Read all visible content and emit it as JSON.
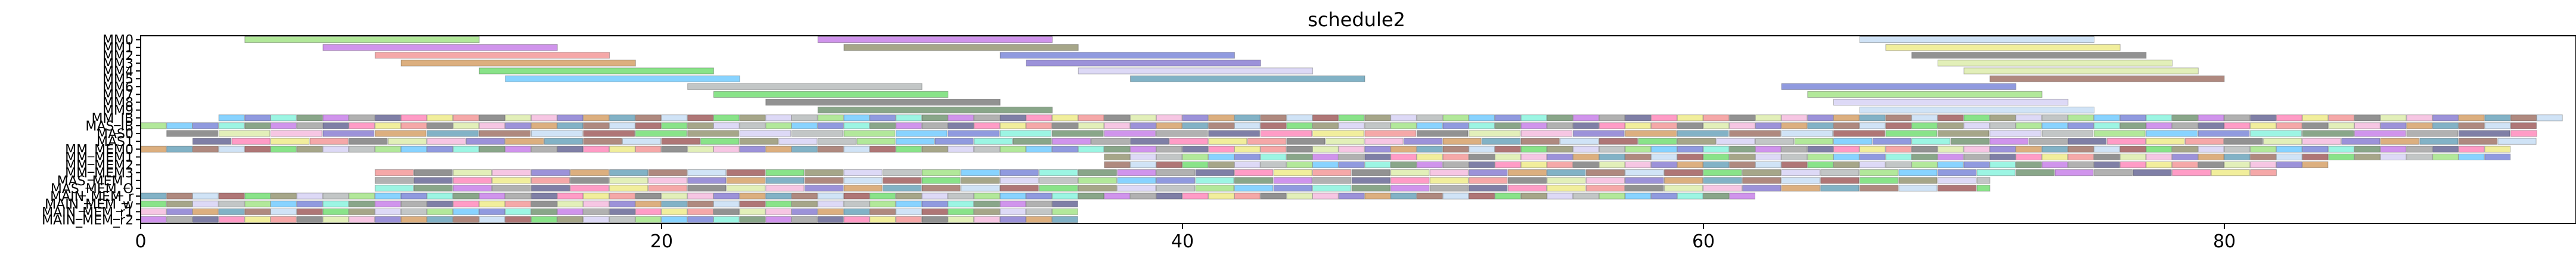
{
  "chart_data": {
    "type": "bar",
    "orientation": "horizontal",
    "title": "schedule2",
    "xlabel": "",
    "ylabel": "",
    "xlim": [
      0,
      93.5
    ],
    "xticks": [
      0,
      20,
      40,
      60,
      80
    ],
    "grid": false,
    "legend": "none",
    "categories": [
      "MM0",
      "MM1",
      "MM2",
      "MM3",
      "MM4",
      "MM5",
      "MM6",
      "MM7",
      "MM8",
      "MM9",
      "MM_IB",
      "MAS_IB",
      "MAS0",
      "MAS1",
      "MM_MEM0",
      "MM_MEM1",
      "MM_MEM2",
      "MM_MEM3",
      "MAS_MEM_I",
      "MAS_MEM_O",
      "MAIN_MEM_r",
      "MAIN_MEM_w",
      "MAIN_MEM_r1",
      "MAIN_MEM_r2"
    ],
    "palette": [
      "#7ed957",
      "#b04de0",
      "#ee6e6e",
      "#c57a2a",
      "#3ad13a",
      "#38b6ff",
      "#7d7d7d",
      "#4a4a4a",
      "#2f7fa0",
      "#6b6b3a",
      "#4657c9",
      "#2a2a6a",
      "#cfe58a",
      "#7a3a2a",
      "#c6c0f0",
      "#5aeed0",
      "#ff5aa0",
      "#f0a0d0",
      "#b0d0f0",
      "#9aa0a0",
      "#3a6a3a",
      "#e8e25a",
      "#5a4ac0",
      "#7a1a1a"
    ],
    "rows": [
      {
        "label": "MM0",
        "segments": [
          [
            4,
            13,
            0
          ],
          [
            26,
            35,
            1
          ],
          [
            66,
            75,
            18
          ]
        ]
      },
      {
        "label": "MM1",
        "segments": [
          [
            7,
            16,
            1
          ],
          [
            27,
            36,
            9
          ],
          [
            67,
            76,
            21
          ]
        ]
      },
      {
        "label": "MM2",
        "segments": [
          [
            9,
            18,
            2
          ],
          [
            33,
            42,
            10
          ],
          [
            68,
            77,
            7
          ]
        ]
      },
      {
        "label": "MM3",
        "segments": [
          [
            10,
            19,
            3
          ],
          [
            34,
            43,
            22
          ],
          [
            69,
            78,
            12
          ]
        ]
      },
      {
        "label": "MM4",
        "segments": [
          [
            13,
            22,
            4
          ],
          [
            36,
            45,
            14
          ],
          [
            70,
            79,
            12
          ]
        ]
      },
      {
        "label": "MM5",
        "segments": [
          [
            14,
            23,
            5
          ],
          [
            38,
            47,
            8
          ],
          [
            71,
            80,
            13
          ]
        ]
      },
      {
        "label": "MM6",
        "segments": [
          [
            21,
            30,
            19
          ],
          [
            63,
            72,
            10
          ]
        ]
      },
      {
        "label": "MM7",
        "segments": [
          [
            22,
            31,
            4
          ],
          [
            64,
            73,
            0
          ]
        ]
      },
      {
        "label": "MM8",
        "segments": [
          [
            24,
            33,
            7
          ],
          [
            65,
            74,
            14
          ]
        ]
      },
      {
        "label": "MM9",
        "segments": [
          [
            26,
            35,
            20
          ],
          [
            66,
            75,
            18
          ]
        ]
      },
      {
        "label": "MM_IB",
        "pattern": {
          "start": 3,
          "step": 1,
          "end": 93,
          "pcount": 5
        }
      },
      {
        "label": "MAS_IB",
        "pattern": {
          "start": 0,
          "step": 1,
          "end": 92,
          "pcount": 0
        }
      },
      {
        "label": "MAS0",
        "pattern": {
          "start": 1,
          "step": 2,
          "end": 92,
          "pcount": 7
        }
      },
      {
        "label": "MAS1",
        "pattern": {
          "start": 2,
          "step": 1.5,
          "end": 92,
          "pcount": 11
        }
      },
      {
        "label": "MM_MEM0",
        "pattern": {
          "start": 0,
          "step": 1,
          "end": 91,
          "pcount": 3
        }
      },
      {
        "label": "MM_MEM1",
        "pattern": {
          "start": 37,
          "step": 1,
          "end": 91,
          "pcount": 9
        }
      },
      {
        "label": "MM_MEM2",
        "pattern": {
          "start": 37,
          "step": 1,
          "end": 84,
          "pcount": 13
        }
      },
      {
        "label": "MM_MEM3",
        "pattern": {
          "start": 9,
          "step": 1.5,
          "end": 82,
          "pcount": 2
        }
      },
      {
        "label": "MAS_MEM_I",
        "pattern": {
          "start": 9,
          "step": 1.5,
          "end": 71,
          "pcount": 6
        }
      },
      {
        "label": "MAS_MEM_O",
        "pattern": {
          "start": 9,
          "step": 1.5,
          "end": 71,
          "pcount": 15
        }
      },
      {
        "label": "MAIN_MEM_r",
        "pattern": {
          "start": 0,
          "step": 1,
          "end": 62,
          "pcount": 8
        }
      },
      {
        "label": "MAIN_MEM_w",
        "pattern": {
          "start": 0,
          "step": 1,
          "end": 36,
          "pcount": 4
        }
      },
      {
        "label": "MAIN_MEM_r1",
        "pattern": {
          "start": 0,
          "step": 1,
          "end": 36,
          "pcount": 17
        }
      },
      {
        "label": "MAIN_MEM_r2",
        "pattern": {
          "start": 0,
          "step": 1,
          "end": 36,
          "pcount": 1
        }
      }
    ]
  }
}
